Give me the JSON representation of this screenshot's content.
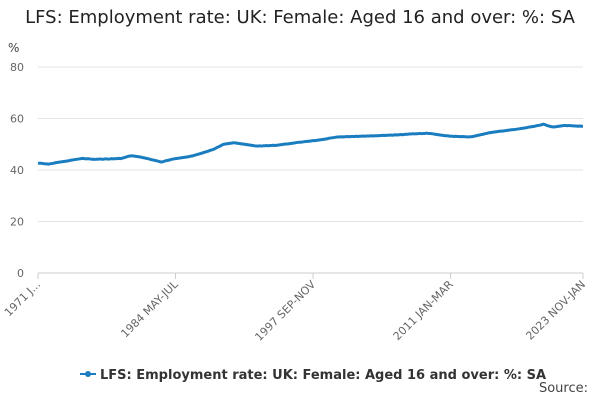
{
  "chart_data": {
    "type": "line",
    "title": "LFS: Employment rate: UK: Female: Aged 16 and over: %: SA",
    "y_label": "%",
    "source": "Source:",
    "ylim": [
      0,
      80
    ],
    "yticks": [
      0,
      20,
      40,
      60,
      80
    ],
    "grid": true,
    "categories": [
      "1971 J...",
      null,
      null,
      null,
      null,
      null,
      null,
      null,
      null,
      null,
      null,
      null,
      null,
      null,
      null,
      null,
      null,
      null,
      null,
      null,
      null,
      null,
      null,
      null,
      null,
      null,
      null,
      null,
      null,
      null,
      null,
      null,
      null,
      null,
      null,
      null,
      null,
      null,
      null,
      null,
      null,
      null,
      null,
      null,
      null,
      null,
      null,
      null,
      null,
      null,
      null,
      null,
      null,
      null,
      null,
      null,
      null,
      null,
      null,
      null,
      null,
      null,
      null,
      null,
      null,
      null,
      null,
      null,
      null,
      null,
      null,
      null,
      null,
      null,
      null,
      null,
      null,
      null,
      null,
      null,
      "1984 MAY-JUL",
      null,
      null,
      null,
      null,
      null,
      null,
      null,
      null,
      null,
      null,
      null,
      null,
      null,
      null,
      null,
      null,
      null,
      null,
      null,
      null,
      null,
      null,
      null,
      null,
      null,
      null,
      null,
      null,
      null,
      null,
      null,
      null,
      null,
      null,
      null,
      null,
      null,
      null,
      null,
      null,
      null,
      null,
      null,
      null,
      null,
      null,
      null,
      null,
      null,
      null,
      null,
      null,
      null,
      null,
      null,
      null,
      null,
      null,
      null,
      null,
      null,
      null,
      null,
      null,
      null,
      null,
      null,
      null,
      null,
      null,
      null,
      null,
      null,
      null,
      null,
      null,
      null,
      null,
      null,
      "1997 SEP-NOV",
      null,
      null,
      null,
      null,
      null,
      null,
      null,
      null,
      null,
      null,
      null,
      null,
      null,
      null,
      null,
      null,
      null,
      null,
      null,
      null,
      null,
      null,
      null,
      null,
      null,
      null,
      null,
      null,
      null,
      null,
      null,
      null,
      null,
      null,
      null,
      null,
      null,
      null,
      null,
      null,
      null,
      null,
      null,
      null,
      null,
      null,
      null,
      null,
      null,
      null,
      null,
      null,
      null,
      null,
      null,
      null,
      null,
      null,
      null,
      null,
      null,
      null,
      null,
      null,
      null,
      null,
      null,
      null,
      null,
      null,
      null,
      null,
      null,
      null,
      null,
      null,
      null,
      null,
      null,
      "2011 JAN-MAR",
      null,
      null,
      null,
      null,
      null,
      null,
      null,
      null,
      null,
      null,
      null,
      null,
      null,
      null,
      null,
      null,
      null,
      null,
      null,
      null,
      null,
      null,
      null,
      null,
      null,
      null,
      null,
      null,
      null,
      null,
      null,
      null,
      null,
      null,
      null,
      null,
      null,
      null,
      null,
      null,
      null,
      null,
      null,
      null,
      null,
      null,
      null,
      null,
      null,
      null,
      null,
      null,
      null,
      null,
      null,
      null,
      null,
      null,
      null,
      null,
      null,
      null,
      null,
      null,
      null,
      null,
      null,
      null,
      null,
      null,
      null,
      null,
      null,
      null,
      null,
      null,
      "2023 NOV-JAN"
    ],
    "series": [
      {
        "name": "LFS: Employment rate: UK: Female: Aged 16 and over: %: SA",
        "color": "#1a7dc0",
        "values": [
          42.7,
          42.6,
          42.6,
          42.5,
          42.4,
          42.4,
          42.3,
          42.4,
          42.5,
          42.6,
          42.8,
          42.9,
          43.0,
          43.1,
          43.2,
          43.3,
          43.4,
          43.5,
          43.6,
          43.8,
          43.9,
          44.0,
          44.1,
          44.2,
          44.3,
          44.4,
          44.5,
          44.4,
          44.3,
          44.4,
          44.3,
          44.2,
          44.2,
          44.1,
          44.2,
          44.2,
          44.3,
          44.2,
          44.2,
          44.3,
          44.3,
          44.2,
          44.3,
          44.4,
          44.3,
          44.4,
          44.4,
          44.5,
          44.4,
          44.6,
          44.8,
          45.0,
          45.2,
          45.4,
          45.5,
          45.5,
          45.4,
          45.3,
          45.2,
          45.1,
          45.0,
          44.8,
          44.7,
          44.5,
          44.4,
          44.2,
          44.0,
          43.9,
          43.7,
          43.6,
          43.4,
          43.2,
          43.1,
          43.3,
          43.5,
          43.7,
          43.8,
          44.0,
          44.2,
          44.3,
          44.4,
          44.5,
          44.6,
          44.7,
          44.8,
          44.9,
          45.0,
          45.1,
          45.2,
          45.4,
          45.5,
          45.7,
          45.9,
          46.1,
          46.3,
          46.5,
          46.7,
          46.9,
          47.1,
          47.3,
          47.6,
          47.8,
          48.0,
          48.3,
          48.7,
          49.0,
          49.3,
          49.7,
          50.0,
          50.1,
          50.2,
          50.3,
          50.4,
          50.5,
          50.6,
          50.5,
          50.4,
          50.3,
          50.2,
          50.1,
          50.0,
          49.9,
          49.8,
          49.7,
          49.6,
          49.5,
          49.4,
          49.3,
          49.3,
          49.4,
          49.3,
          49.4,
          49.4,
          49.5,
          49.4,
          49.5,
          49.5,
          49.6,
          49.5,
          49.6,
          49.7,
          49.8,
          49.9,
          50.0,
          50.1,
          50.1,
          50.2,
          50.3,
          50.4,
          50.5,
          50.6,
          50.7,
          50.8,
          50.8,
          50.9,
          51.0,
          51.1,
          51.1,
          51.2,
          51.3,
          51.4,
          51.4,
          51.5,
          51.6,
          51.7,
          51.8,
          51.9,
          52.0,
          52.1,
          52.3,
          52.4,
          52.5,
          52.6,
          52.7,
          52.8,
          52.8,
          52.9,
          52.8,
          52.9,
          52.9,
          53.0,
          52.9,
          53.0,
          53.0,
          53.0,
          53.1,
          53.0,
          53.1,
          53.1,
          53.2,
          53.1,
          53.2,
          53.2,
          53.2,
          53.3,
          53.2,
          53.3,
          53.3,
          53.3,
          53.4,
          53.4,
          53.5,
          53.4,
          53.5,
          53.5,
          53.6,
          53.5,
          53.6,
          53.7,
          53.6,
          53.7,
          53.8,
          53.7,
          53.8,
          53.9,
          53.9,
          54.0,
          54.0,
          54.1,
          54.0,
          54.1,
          54.1,
          54.2,
          54.1,
          54.2,
          54.2,
          54.3,
          54.2,
          54.2,
          54.1,
          54.0,
          53.9,
          53.8,
          53.7,
          53.6,
          53.5,
          53.4,
          53.3,
          53.3,
          53.2,
          53.1,
          53.1,
          53.0,
          53.1,
          53.0,
          53.0,
          52.9,
          53.0,
          52.9,
          52.9,
          52.8,
          52.9,
          52.9,
          53.0,
          53.2,
          53.3,
          53.5,
          53.6,
          53.8,
          53.9,
          54.1,
          54.2,
          54.4,
          54.5,
          54.6,
          54.7,
          54.8,
          54.9,
          55.0,
          55.1,
          55.1,
          55.2,
          55.3,
          55.4,
          55.5,
          55.6,
          55.7,
          55.7,
          55.8,
          55.9,
          56.0,
          56.1,
          56.2,
          56.3,
          56.4,
          56.6,
          56.7,
          56.8,
          56.9,
          57.0,
          57.2,
          57.3,
          57.4,
          57.6,
          57.8,
          57.6,
          57.3,
          57.1,
          56.9,
          56.8,
          56.7,
          56.8,
          56.9,
          57.0,
          57.1,
          57.2,
          57.3,
          57.3,
          57.2,
          57.3,
          57.2,
          57.2,
          57.1,
          57.1,
          57.0,
          57.1,
          57.0,
          57.0
        ]
      }
    ]
  }
}
